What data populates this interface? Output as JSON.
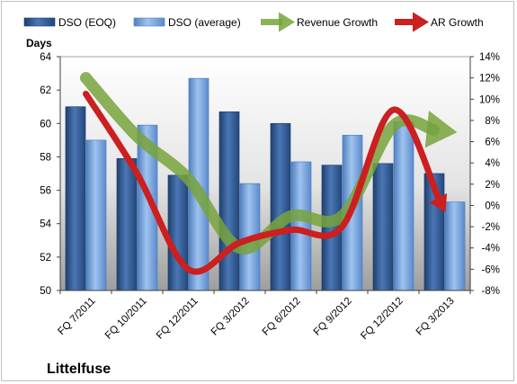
{
  "chart_data": {
    "type": "bar",
    "company": "Littelfuse",
    "y_left_title": "Days",
    "categories": [
      "FQ 7/2011",
      "FQ 10/2011",
      "FQ 12/2011",
      "FQ 3/2012",
      "FQ 6/2012",
      "FQ 9/2012",
      "FQ 12/2012",
      "FQ 3/2013"
    ],
    "series": [
      {
        "name": "DSO (EOQ)",
        "type": "bar",
        "axis": "left",
        "color": "#2f5790",
        "values": [
          61.0,
          57.9,
          56.9,
          60.7,
          60.0,
          57.5,
          57.6,
          57.0
        ]
      },
      {
        "name": "DSO (average)",
        "type": "bar",
        "axis": "left",
        "color": "#6f9fd8",
        "values": [
          59.0,
          59.9,
          62.7,
          56.4,
          57.7,
          59.3,
          60.1,
          55.3
        ]
      },
      {
        "name": "Revenue Growth",
        "type": "line",
        "axis": "right",
        "color": "#77a33c",
        "values": [
          12.0,
          6.5,
          2.5,
          -4.0,
          -1.0,
          -1.0,
          7.5,
          7.0
        ]
      },
      {
        "name": "AR Growth",
        "type": "line",
        "axis": "right",
        "color": "#cc1f1f",
        "values": [
          10.5,
          3.0,
          -6.0,
          -3.5,
          -2.3,
          -2.0,
          9.0,
          -0.5
        ]
      }
    ],
    "y_left": {
      "min": 50,
      "max": 64,
      "ticks": [
        "50",
        "52",
        "54",
        "56",
        "58",
        "60",
        "62",
        "64"
      ]
    },
    "y_right": {
      "min": -8,
      "max": 14,
      "ticks": [
        "-8%",
        "-6%",
        "-4%",
        "-2%",
        "0%",
        "2%",
        "4%",
        "6%",
        "8%",
        "10%",
        "12%",
        "14%"
      ]
    },
    "legend_position": "top",
    "grid": false
  }
}
